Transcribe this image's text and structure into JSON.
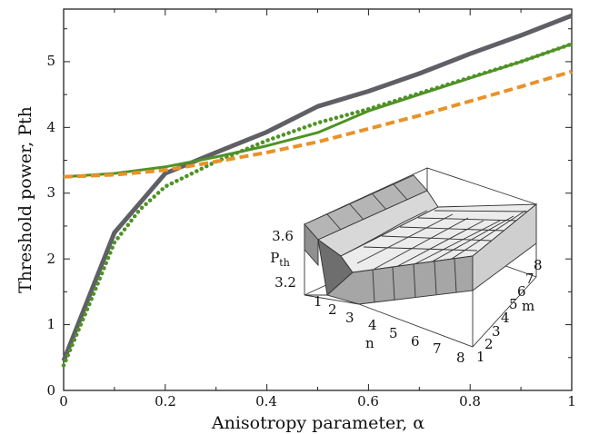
{
  "chart_data": [
    {
      "type": "line",
      "title": "",
      "xlabel": "Anisotropy parameter, α",
      "ylabel": "Threshold power, Pth",
      "xlim": [
        0,
        1
      ],
      "ylim": [
        0,
        5.8
      ],
      "x_ticks": [
        "0",
        "0.2",
        "0.4",
        "0.6",
        "0.8",
        "1"
      ],
      "y_ticks": [
        "0",
        "1",
        "2",
        "3",
        "4",
        "5"
      ],
      "grid": false,
      "legend": "none",
      "series": [
        {
          "style": "solid",
          "color": "#5f5f66",
          "x": [
            0,
            0.1,
            0.2,
            0.3,
            0.4,
            0.5,
            0.6,
            0.7,
            0.8,
            0.9,
            1.0
          ],
          "y": [
            0.45,
            2.4,
            3.3,
            3.62,
            3.93,
            4.32,
            4.55,
            4.82,
            5.12,
            5.4,
            5.7
          ]
        },
        {
          "style": "solid",
          "color": "#4f9226",
          "x": [
            0,
            0.1,
            0.2,
            0.3,
            0.4,
            0.5,
            0.6,
            0.7,
            0.8,
            0.9,
            1.0
          ],
          "y": [
            3.25,
            3.3,
            3.4,
            3.55,
            3.72,
            3.92,
            4.25,
            4.5,
            4.75,
            5.0,
            5.27
          ]
        },
        {
          "style": "dotted",
          "color": "#4f9226",
          "x": [
            0,
            0.05,
            0.1,
            0.15,
            0.2,
            0.3,
            0.4,
            0.5,
            0.6,
            0.7,
            0.8,
            0.9,
            1.0
          ],
          "y": [
            0.38,
            1.3,
            2.25,
            2.75,
            3.1,
            3.48,
            3.8,
            4.07,
            4.28,
            4.52,
            4.76,
            5.0,
            5.27
          ]
        },
        {
          "style": "dashed",
          "color": "#e8922a",
          "x": [
            0,
            0.1,
            0.2,
            0.3,
            0.4,
            0.5,
            0.6,
            0.7,
            0.8,
            0.9,
            1.0
          ],
          "y": [
            3.25,
            3.28,
            3.35,
            3.48,
            3.62,
            3.78,
            3.98,
            4.18,
            4.4,
            4.62,
            4.85
          ]
        }
      ]
    },
    {
      "type": "surface",
      "zlabel": "Pth",
      "xlabel": "n",
      "ylabel": "m",
      "n_ticks": [
        "1",
        "2",
        "3",
        "4",
        "5",
        "6",
        "7",
        "8"
      ],
      "m_ticks": [
        "1",
        "2",
        "3",
        "4",
        "5",
        "6",
        "7",
        "8"
      ],
      "z_ticks": [
        "3.2",
        "3.6"
      ]
    }
  ]
}
